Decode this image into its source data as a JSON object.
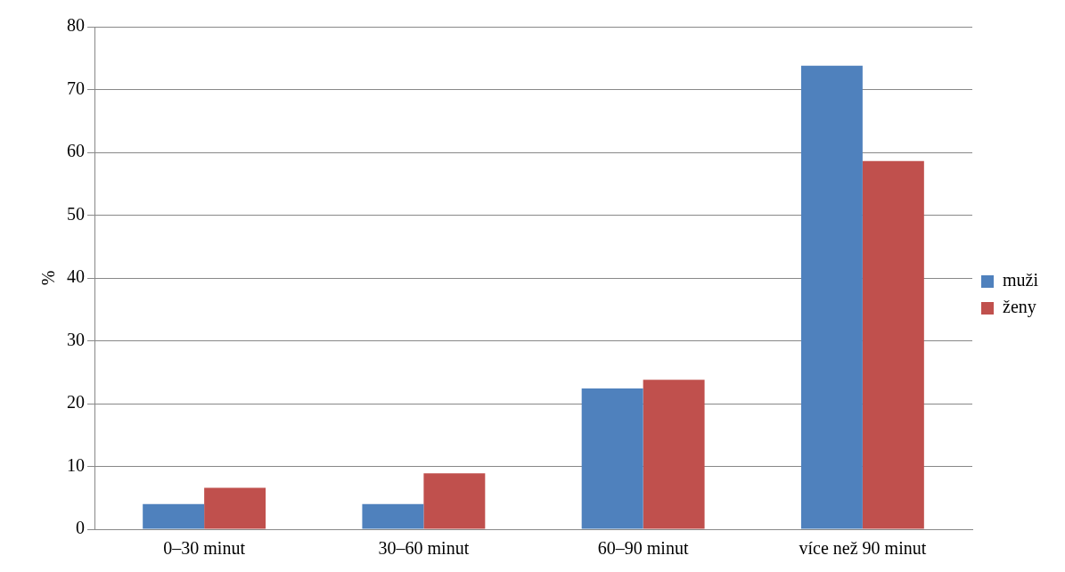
{
  "chart_data": {
    "type": "bar",
    "ylabel": "%",
    "categories": [
      "0–30 minut",
      "30–60 minut",
      "60–90 minut",
      "více než 90 minut"
    ],
    "series": [
      {
        "name": "muži",
        "color": "#4f81bd",
        "values": [
          4,
          4,
          22.4,
          73.8
        ]
      },
      {
        "name": "ženy",
        "color": "#c0504d",
        "values": [
          6.6,
          8.9,
          23.8,
          58.6
        ]
      }
    ],
    "ylim": [
      0,
      80
    ],
    "yticks": [
      0,
      10,
      20,
      30,
      40,
      50,
      60,
      70,
      80
    ],
    "grid": "y",
    "legend": "right"
  }
}
